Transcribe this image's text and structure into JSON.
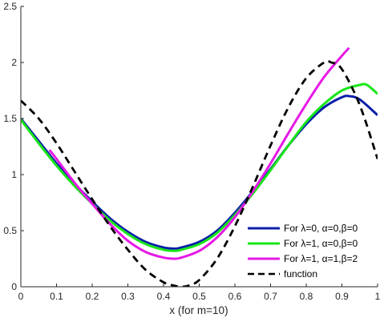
{
  "chart_data": {
    "type": "line",
    "title": "",
    "xlabel": "x (for m=10)",
    "ylabel": "",
    "xlim": [
      0,
      1
    ],
    "ylim": [
      0,
      2.5
    ],
    "x_ticks": [
      "0",
      "0.1",
      "0.2",
      "0.3",
      "0.4",
      "0.5",
      "0.6",
      "0.7",
      "0.8",
      "0.9",
      "1"
    ],
    "y_ticks": [
      "0",
      "0.5",
      "1",
      "1.5",
      "2",
      "2.5"
    ],
    "grid": false,
    "legend_position": "bottom-right",
    "series": [
      {
        "name": "For λ=0, α=0,β=0",
        "color": "#0b1fa8",
        "style": "solid",
        "x": [
          0,
          0.05,
          0.1,
          0.15,
          0.2,
          0.25,
          0.3,
          0.35,
          0.4,
          0.43,
          0.45,
          0.5,
          0.55,
          0.6,
          0.65,
          0.7,
          0.75,
          0.8,
          0.85,
          0.9,
          0.92,
          0.95,
          1.0
        ],
        "y": [
          1.5,
          1.3,
          1.1,
          0.92,
          0.76,
          0.61,
          0.49,
          0.4,
          0.35,
          0.34,
          0.35,
          0.4,
          0.5,
          0.66,
          0.85,
          1.05,
          1.26,
          1.45,
          1.6,
          1.69,
          1.7,
          1.67,
          1.53
        ]
      },
      {
        "name": "For λ=1, α=0,β=0",
        "color": "#19e619",
        "style": "solid",
        "x": [
          0,
          0.05,
          0.1,
          0.15,
          0.2,
          0.25,
          0.3,
          0.35,
          0.4,
          0.43,
          0.45,
          0.5,
          0.55,
          0.6,
          0.65,
          0.7,
          0.75,
          0.8,
          0.85,
          0.9,
          0.95,
          0.97,
          1.0
        ],
        "y": [
          1.49,
          1.28,
          1.08,
          0.9,
          0.74,
          0.59,
          0.47,
          0.38,
          0.33,
          0.32,
          0.33,
          0.38,
          0.48,
          0.64,
          0.83,
          1.04,
          1.26,
          1.47,
          1.63,
          1.75,
          1.8,
          1.8,
          1.72
        ]
      },
      {
        "name": "For λ=1, α=1,β=2",
        "color": "#e619e6",
        "style": "solid",
        "x": [
          0.08,
          0.1,
          0.15,
          0.2,
          0.25,
          0.3,
          0.35,
          0.4,
          0.43,
          0.45,
          0.5,
          0.55,
          0.6,
          0.65,
          0.7,
          0.75,
          0.8,
          0.85,
          0.9,
          0.92
        ],
        "y": [
          1.22,
          1.14,
          0.93,
          0.74,
          0.56,
          0.41,
          0.31,
          0.26,
          0.25,
          0.26,
          0.32,
          0.44,
          0.62,
          0.85,
          1.1,
          1.37,
          1.63,
          1.87,
          2.06,
          2.13
        ]
      },
      {
        "name": "function",
        "color": "#000000",
        "style": "dashed",
        "x": [
          0,
          0.05,
          0.1,
          0.15,
          0.2,
          0.25,
          0.3,
          0.35,
          0.4,
          0.43,
          0.45,
          0.47,
          0.5,
          0.55,
          0.6,
          0.65,
          0.7,
          0.75,
          0.8,
          0.85,
          0.87,
          0.9,
          0.95,
          1.0
        ],
        "y": [
          1.66,
          1.5,
          1.28,
          1.03,
          0.78,
          0.54,
          0.33,
          0.15,
          0.04,
          0.01,
          0.0,
          0.01,
          0.06,
          0.25,
          0.54,
          0.89,
          1.26,
          1.6,
          1.86,
          2.0,
          2.0,
          1.94,
          1.62,
          1.14
        ]
      }
    ]
  }
}
